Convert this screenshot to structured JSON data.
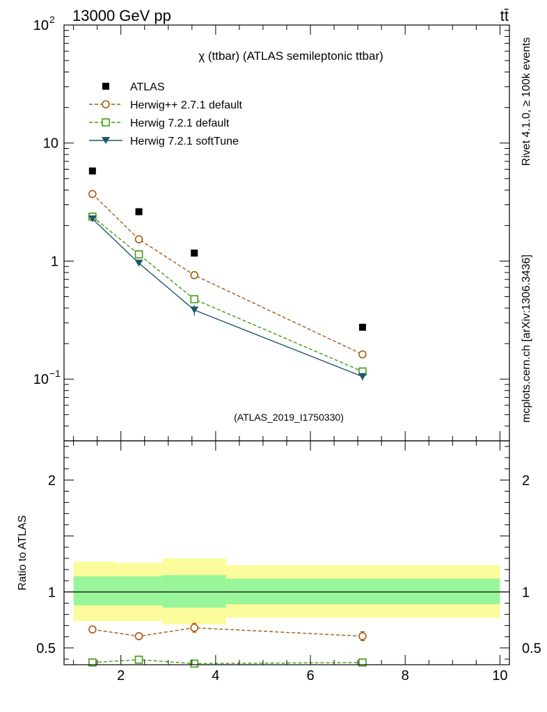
{
  "header": {
    "energy_label": "13000 GeV pp",
    "process_label": "tt̄"
  },
  "side_labels": {
    "rivet": "Rivet 4.1.0, ≥ 100k events",
    "mcplots": "mcplots.cern.ch [arXiv:1306.3436]"
  },
  "chart_data": [
    {
      "panel": "main",
      "type": "scatter",
      "title": "χ (ttbar) (ATLAS semileptonic ttbar)",
      "analysis_id": "(ATLAS_2019_I1750330)",
      "xlabel": "",
      "ylabel": "",
      "xlim": [
        0.8,
        10.2
      ],
      "ylim": [
        0.03,
        100
      ],
      "yscale": "log",
      "y_ticks": [
        {
          "value": 100,
          "base": "10",
          "exp": "2"
        },
        {
          "value": 10,
          "base": "10",
          "exp": ""
        },
        {
          "value": 1,
          "base": "1",
          "exp": ""
        },
        {
          "value": 0.1,
          "base": "10",
          "exp": "−1"
        }
      ],
      "legend_position": "top-left",
      "series": [
        {
          "name": "ATLAS",
          "marker": "square-filled",
          "line": "none",
          "color": "#000000",
          "x": [
            1.4,
            2.38,
            3.55,
            7.1
          ],
          "y": [
            5.8,
            2.62,
            1.17,
            0.275
          ],
          "yerr": [
            0,
            0,
            0,
            0
          ]
        },
        {
          "name": "Herwig++ 2.7.1 default",
          "marker": "circle-open",
          "line": "dashed",
          "color": "#a8570f",
          "x": [
            1.4,
            2.38,
            3.55,
            7.1
          ],
          "y": [
            3.7,
            1.53,
            0.76,
            0.162
          ],
          "yerr": [
            0.05,
            0.03,
            0.02,
            0.006
          ]
        },
        {
          "name": "Herwig 7.2.1 default",
          "marker": "square-open",
          "line": "dashed",
          "color": "#3f9a0f",
          "x": [
            1.4,
            2.38,
            3.55,
            7.1
          ],
          "y": [
            2.38,
            1.14,
            0.475,
            0.116
          ],
          "yerr": [
            0.04,
            0.03,
            0.02,
            0.005
          ]
        },
        {
          "name": "Herwig 7.2.1 softTune",
          "marker": "triangle-down-filled",
          "line": "solid",
          "color": "#1d5768",
          "x": [
            1.4,
            2.38,
            3.55,
            7.1
          ],
          "y": [
            2.28,
            0.96,
            0.385,
            0.105
          ],
          "yerr": [
            0.05,
            0.03,
            0.04,
            0.008
          ]
        }
      ]
    },
    {
      "panel": "ratio",
      "type": "scatter",
      "ylabel": "Ratio to ATLAS",
      "xlim": [
        0.8,
        10.2
      ],
      "ylim": [
        0.35,
        2.35
      ],
      "y_ticks": [
        {
          "value": 2,
          "label": "2"
        },
        {
          "value": 1,
          "label": "1"
        },
        {
          "value": 0.5,
          "label": "0.5"
        }
      ],
      "x_ticks": [
        {
          "value": 2,
          "label": "2"
        },
        {
          "value": 4,
          "label": "4"
        },
        {
          "value": 6,
          "label": "6"
        },
        {
          "value": 8,
          "label": "8"
        },
        {
          "value": 10,
          "label": "10"
        }
      ],
      "bands": [
        {
          "xlo": 1.0,
          "xhi": 1.88,
          "outer": [
            0.74,
            1.27
          ],
          "inner": [
            0.88,
            1.14
          ]
        },
        {
          "xlo": 1.88,
          "xhi": 2.88,
          "outer": [
            0.74,
            1.26
          ],
          "inner": [
            0.88,
            1.14
          ]
        },
        {
          "xlo": 2.88,
          "xhi": 4.22,
          "outer": [
            0.71,
            1.3
          ],
          "inner": [
            0.86,
            1.15
          ]
        },
        {
          "xlo": 4.22,
          "xhi": 10.0,
          "outer": [
            0.77,
            1.24
          ],
          "inner": [
            0.89,
            1.12
          ]
        }
      ],
      "series": [
        {
          "name": "Herwig++ 2.7.1 default",
          "marker": "circle-open",
          "line": "dashed",
          "color": "#a8570f",
          "x": [
            1.4,
            2.38,
            3.55,
            7.1
          ],
          "y": [
            0.665,
            0.605,
            0.68,
            0.605
          ],
          "yerr": [
            0.025,
            0.03,
            0.04,
            0.04
          ]
        },
        {
          "name": "Herwig 7.2.1 default",
          "marker": "square-open",
          "line": "dashed",
          "color": "#3f9a0f",
          "x": [
            1.4,
            2.38,
            3.55,
            7.1
          ],
          "y": [
            0.37,
            0.395,
            0.36,
            0.37
          ],
          "yerr": [
            0.015,
            0.02,
            0.025,
            0.025
          ]
        }
      ]
    }
  ]
}
